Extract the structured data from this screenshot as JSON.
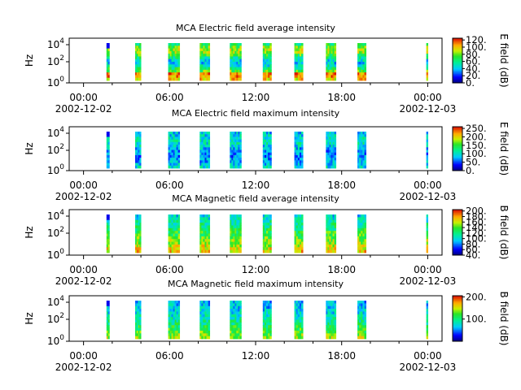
{
  "chart_data": [
    {
      "type": "heatmap",
      "title": "MCA  Electric field average intensity",
      "ylabel": "Hz",
      "y_ticks": [
        "10^4",
        "10^2",
        "10^0"
      ],
      "y_scale": "log",
      "ylim": [
        1,
        20000
      ],
      "x_ticks": [
        {
          "time": "00:00",
          "date": "2002-12-02"
        },
        {
          "time": "06:00",
          "date": ""
        },
        {
          "time": "12:00",
          "date": ""
        },
        {
          "time": "18:00",
          "date": ""
        },
        {
          "time": "00:00",
          "date": "2002-12-03"
        }
      ],
      "colorbar": {
        "label": "E field (dB)",
        "ticks": [
          "120.",
          "100.",
          "80.",
          "60.",
          "40.",
          "20.",
          "0."
        ],
        "range": [
          0,
          125
        ]
      },
      "style": "e_avg",
      "passes_hours": [
        [
          1.6,
          1.8
        ],
        [
          3.6,
          4.0
        ],
        [
          5.9,
          6.7
        ],
        [
          8.1,
          8.8
        ],
        [
          10.2,
          11.0
        ],
        [
          12.5,
          13.1
        ],
        [
          14.7,
          15.3
        ],
        [
          16.9,
          17.6
        ],
        [
          19.1,
          19.7
        ],
        [
          23.9,
          23.97
        ]
      ]
    },
    {
      "type": "heatmap",
      "title": "MCA  Electric field maximum intensity",
      "ylabel": "Hz",
      "y_ticks": [
        "10^4",
        "10^2",
        "10^0"
      ],
      "y_scale": "log",
      "ylim": [
        1,
        20000
      ],
      "x_ticks": [
        {
          "time": "00:00",
          "date": "2002-12-02"
        },
        {
          "time": "06:00",
          "date": ""
        },
        {
          "time": "12:00",
          "date": ""
        },
        {
          "time": "18:00",
          "date": ""
        },
        {
          "time": "00:00",
          "date": "2002-12-03"
        }
      ],
      "colorbar": {
        "label": "E field (dB)",
        "ticks": [
          "250.",
          "200.",
          "150.",
          "100.",
          "50.",
          "0."
        ],
        "range": [
          0,
          260
        ]
      },
      "style": "e_max",
      "passes_hours": [
        [
          1.6,
          1.8
        ],
        [
          3.6,
          4.0
        ],
        [
          5.9,
          6.7
        ],
        [
          8.1,
          8.8
        ],
        [
          10.2,
          11.0
        ],
        [
          12.5,
          13.1
        ],
        [
          14.7,
          15.3
        ],
        [
          16.9,
          17.6
        ],
        [
          19.1,
          19.7
        ],
        [
          23.9,
          23.97
        ]
      ]
    },
    {
      "type": "heatmap",
      "title": "MCA  Magnetic field average intensity",
      "ylabel": "Hz",
      "y_ticks": [
        "10^4",
        "10^2",
        "10^0"
      ],
      "y_scale": "log",
      "ylim": [
        1,
        20000
      ],
      "x_ticks": [
        {
          "time": "00:00",
          "date": "2002-12-02"
        },
        {
          "time": "06:00",
          "date": ""
        },
        {
          "time": "12:00",
          "date": ""
        },
        {
          "time": "18:00",
          "date": ""
        },
        {
          "time": "00:00",
          "date": "2002-12-03"
        }
      ],
      "colorbar": {
        "label": "B field (dB)",
        "ticks": [
          "200.",
          "180.",
          "160.",
          "140.",
          "120.",
          "100.",
          "80.",
          "60.",
          "40."
        ],
        "range": [
          40,
          205
        ]
      },
      "style": "b_avg",
      "passes_hours": [
        [
          1.6,
          1.8
        ],
        [
          3.6,
          4.0
        ],
        [
          5.9,
          6.7
        ],
        [
          8.1,
          8.8
        ],
        [
          10.2,
          11.0
        ],
        [
          12.5,
          13.1
        ],
        [
          14.7,
          15.3
        ],
        [
          16.9,
          17.6
        ],
        [
          19.1,
          19.7
        ],
        [
          23.9,
          23.97
        ]
      ]
    },
    {
      "type": "heatmap",
      "title": "MCA  Magnetic field maximum intensity",
      "ylabel": "Hz",
      "y_ticks": [
        "10^4",
        "10^2",
        "10^0"
      ],
      "y_scale": "log",
      "ylim": [
        1,
        20000
      ],
      "x_ticks": [
        {
          "time": "00:00",
          "date": "2002-12-02"
        },
        {
          "time": "06:00",
          "date": ""
        },
        {
          "time": "12:00",
          "date": ""
        },
        {
          "time": "18:00",
          "date": ""
        },
        {
          "time": "00:00",
          "date": "2002-12-03"
        }
      ],
      "colorbar": {
        "label": "B field (dB)",
        "ticks": [
          "200.",
          "100."
        ],
        "range": [
          0,
          205
        ]
      },
      "style": "b_max",
      "passes_hours": [
        [
          1.6,
          1.8
        ],
        [
          3.6,
          4.0
        ],
        [
          5.9,
          6.7
        ],
        [
          8.1,
          8.8
        ],
        [
          10.2,
          11.0
        ],
        [
          12.5,
          13.1
        ],
        [
          14.7,
          15.3
        ],
        [
          16.9,
          17.6
        ],
        [
          19.1,
          19.7
        ],
        [
          23.9,
          23.97
        ]
      ]
    }
  ]
}
